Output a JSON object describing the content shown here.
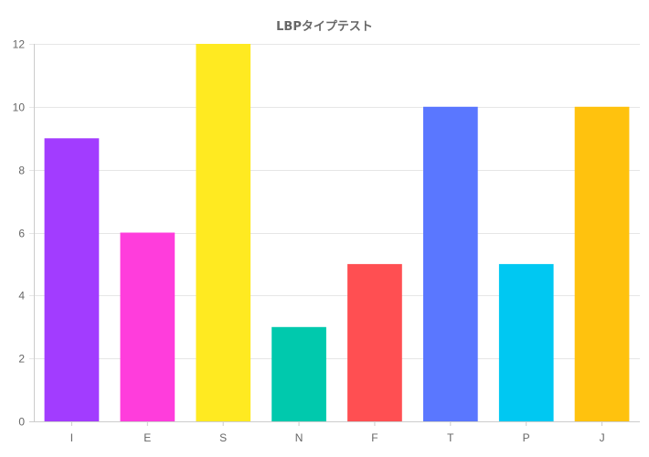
{
  "chart_data": {
    "type": "bar",
    "title": "LBPタイプテスト",
    "xlabel": "",
    "ylabel": "",
    "categories": [
      "I",
      "E",
      "S",
      "N",
      "F",
      "T",
      "P",
      "J"
    ],
    "values": [
      9,
      6,
      12,
      3,
      5,
      10,
      5,
      10
    ],
    "colors": [
      "#a23cff",
      "#ff3ddc",
      "#ffea21",
      "#00c9ad",
      "#ff4f52",
      "#5a77ff",
      "#00c8f2",
      "#ffc20e"
    ],
    "ylim": [
      0,
      12
    ],
    "yticks": [
      "0",
      "2",
      "4",
      "6",
      "8",
      "10",
      "12"
    ],
    "grid": true,
    "legend": "none"
  },
  "style": {
    "grid_color": "#e6e6e6",
    "axis_color": "#cccccc",
    "text_color": "#666666"
  }
}
